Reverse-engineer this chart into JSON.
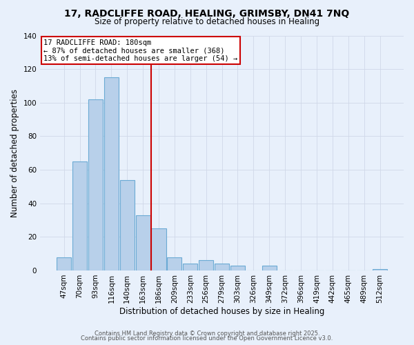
{
  "title": "17, RADCLIFFE ROAD, HEALING, GRIMSBY, DN41 7NQ",
  "subtitle": "Size of property relative to detached houses in Healing",
  "xlabel": "Distribution of detached houses by size in Healing",
  "ylabel": "Number of detached properties",
  "footer_line1": "Contains HM Land Registry data © Crown copyright and database right 2025.",
  "footer_line2": "Contains public sector information licensed under the Open Government Licence v3.0.",
  "categories": [
    "47sqm",
    "70sqm",
    "93sqm",
    "116sqm",
    "140sqm",
    "163sqm",
    "186sqm",
    "209sqm",
    "233sqm",
    "256sqm",
    "279sqm",
    "303sqm",
    "326sqm",
    "349sqm",
    "372sqm",
    "396sqm",
    "419sqm",
    "442sqm",
    "465sqm",
    "489sqm",
    "512sqm"
  ],
  "values": [
    8,
    65,
    102,
    115,
    54,
    33,
    25,
    8,
    4,
    6,
    4,
    3,
    0,
    3,
    0,
    0,
    0,
    0,
    0,
    0,
    1
  ],
  "bar_color": "#b8d0ea",
  "bar_edge_color": "#6aaad4",
  "grid_color": "#d0d8e8",
  "bg_color": "#e8f0fb",
  "plot_bg_color": "#e8f0fb",
  "vline_color": "#cc0000",
  "annotation_title": "17 RADCLIFFE ROAD: 180sqm",
  "annotation_line1": "← 87% of detached houses are smaller (368)",
  "annotation_line2": "13% of semi-detached houses are larger (54) →",
  "annotation_box_color": "#ffffff",
  "annotation_box_edge": "#cc0000",
  "ylim": [
    0,
    140
  ],
  "yticks": [
    0,
    20,
    40,
    60,
    80,
    100,
    120,
    140
  ],
  "title_fontsize": 10,
  "subtitle_fontsize": 8.5,
  "xlabel_fontsize": 8.5,
  "ylabel_fontsize": 8.5,
  "tick_fontsize": 7.5,
  "footer_fontsize": 6.0,
  "ann_fontsize": 7.5
}
